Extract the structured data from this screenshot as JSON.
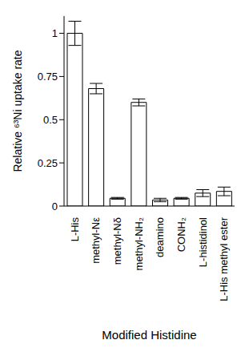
{
  "chart_data": {
    "type": "bar",
    "y_label": "Relative ⁶³Ni uptake rate",
    "x_label": "Modified Histidine",
    "categories": [
      "L-His",
      "methyl-Nε",
      "methyl-Nδ",
      "methyl-NH₂",
      "deamino",
      "CONH₂",
      "L-histidinol",
      "L-His methyl ester"
    ],
    "values": [
      1.0,
      0.68,
      0.045,
      0.6,
      0.035,
      0.045,
      0.075,
      0.085
    ],
    "errors": [
      0.07,
      0.03,
      0.005,
      0.02,
      0.01,
      0.005,
      0.02,
      0.025
    ],
    "color": "#ffffff",
    "ylim": [
      0,
      1.1
    ],
    "yticks": [
      0,
      0.25,
      0.5,
      0.75,
      1
    ],
    "grid": false
  }
}
